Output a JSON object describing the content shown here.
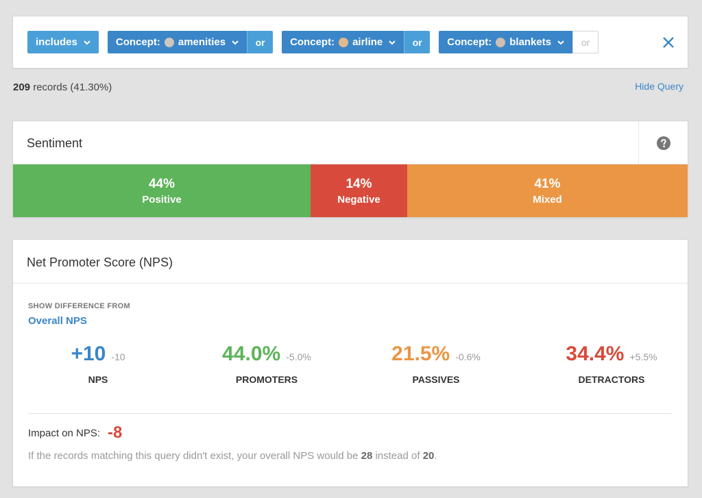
{
  "query": {
    "operator_label": "includes",
    "concepts": [
      {
        "prefix": "Concept:",
        "name": "amenities",
        "dot_color": "#cfc7bd",
        "or_label": "or",
        "or_active": true
      },
      {
        "prefix": "Concept:",
        "name": "airline",
        "dot_color": "#e2b98c",
        "or_label": "or",
        "or_active": true
      },
      {
        "prefix": "Concept:",
        "name": "blankets",
        "dot_color": "#cdbfb2",
        "or_label": "or",
        "or_active": false
      }
    ],
    "close_icon": "close-icon"
  },
  "records": {
    "count": "209",
    "suffix": " records (41.30%)",
    "hide_query_label": "Hide Query"
  },
  "sentiment": {
    "title": "Sentiment",
    "help_icon": "question-circle-icon",
    "segments": [
      {
        "pct": "44%",
        "label": "Positive",
        "share": 0.44,
        "color": "#5db45a"
      },
      {
        "pct": "14%",
        "label": "Negative",
        "share": 0.143,
        "color": "#d84b3c"
      },
      {
        "pct": "41%",
        "label": "Mixed",
        "share": 0.415,
        "color": "#ea9645"
      },
      {
        "pct": "0%",
        "label": "",
        "share": 0.004,
        "color": "#6c6c6c"
      }
    ]
  },
  "nps": {
    "title": "Net Promoter Score (NPS)",
    "show_difference_label": "SHOW DIFFERENCE FROM",
    "compare_label": "Overall NPS",
    "metrics": [
      {
        "value": "+10",
        "diff": "-10",
        "label": "NPS",
        "color": "#3a86c8"
      },
      {
        "value": "44.0%",
        "diff": "-5.0%",
        "label": "PROMOTERS",
        "color": "#5db45a"
      },
      {
        "value": "21.5%",
        "diff": "-0.6%",
        "label": "PASSIVES",
        "color": "#ea9645"
      },
      {
        "value": "34.4%",
        "diff": "+5.5%",
        "label": "DETRACTORS",
        "color": "#d94a3a"
      }
    ],
    "impact_label": "Impact on NPS:",
    "impact_value": "-8",
    "explain_prefix": "If the records matching this query didn't exist, your overall NPS would be ",
    "explain_without": "28",
    "explain_middle": " instead of ",
    "explain_overall": "20",
    "explain_suffix": "."
  }
}
